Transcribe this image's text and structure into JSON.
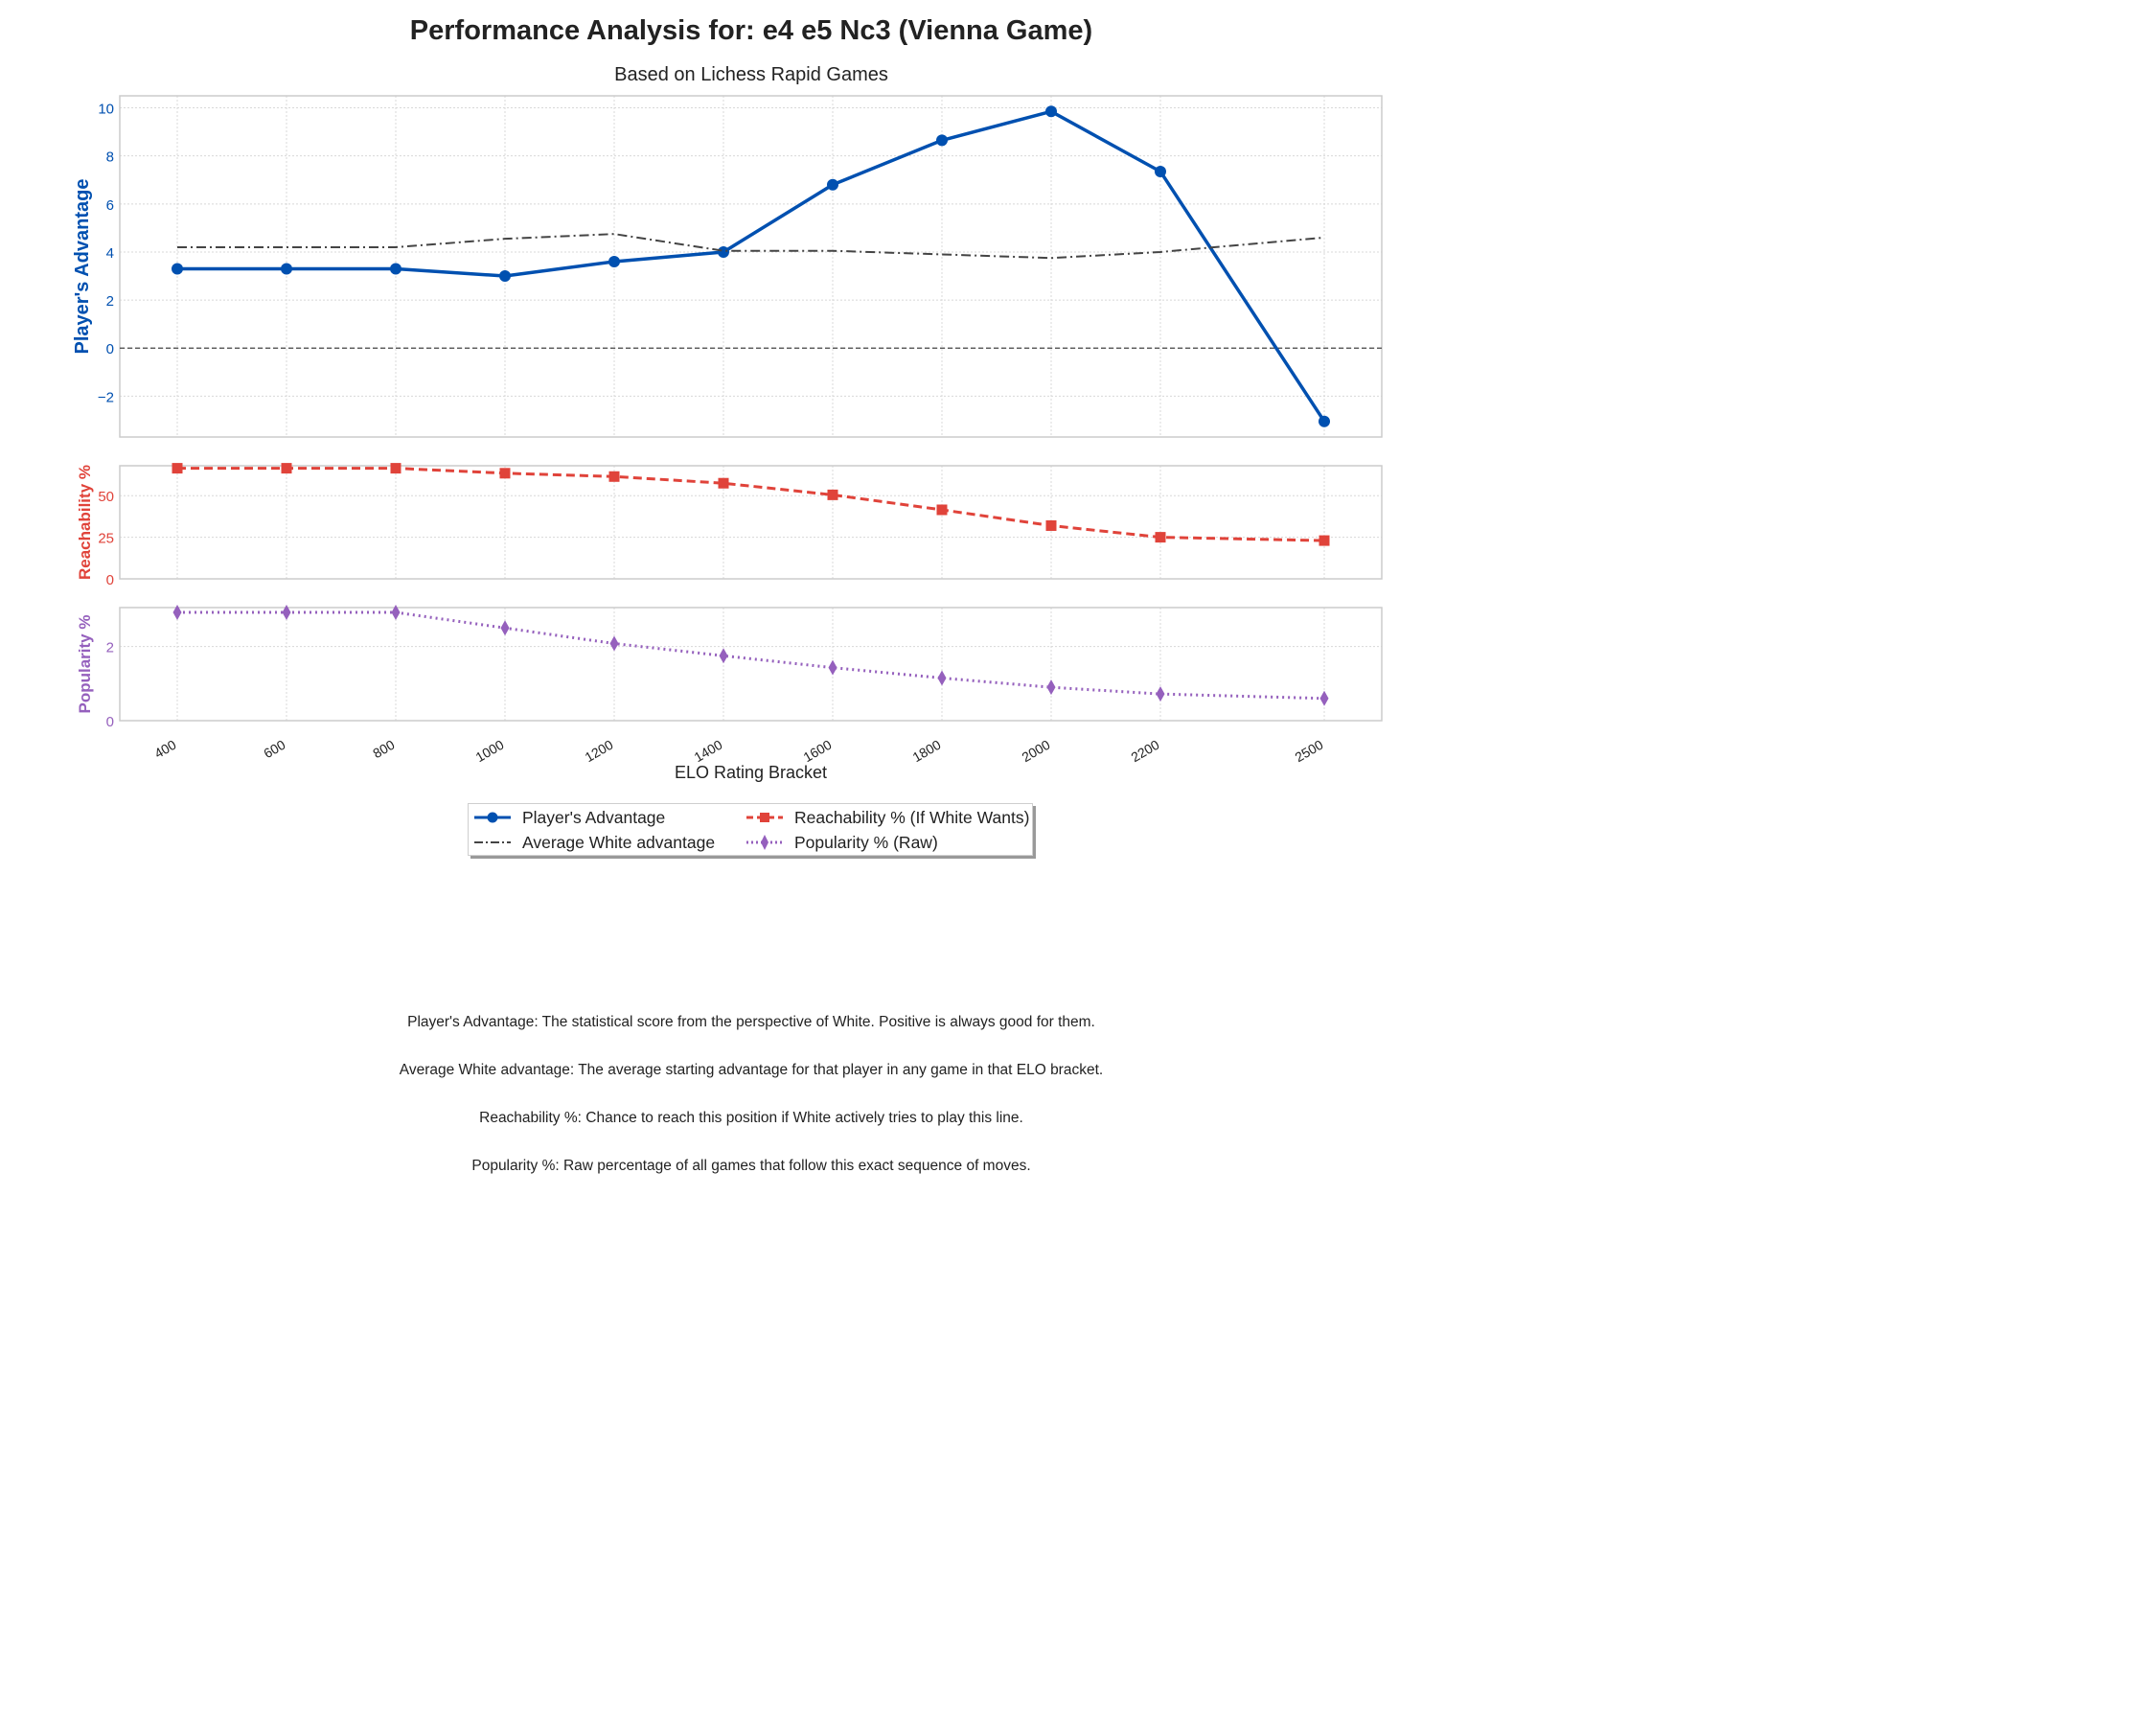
{
  "title": "Performance Analysis for: e4 e5 Nc3 (Vienna Game)",
  "subtitle": "Based on Lichess Rapid Games",
  "colors": {
    "advantage": "#0050b0",
    "average": "#444444",
    "reachability": "#e0433a",
    "popularity": "#9560bd",
    "grid": "#d8d8d8",
    "frame": "#cccccc"
  },
  "chart_data": {
    "type": "line",
    "x": [
      400,
      600,
      800,
      1000,
      1200,
      1400,
      1600,
      1800,
      2000,
      2200,
      2500
    ],
    "x_tick_labels": [
      "400",
      "600",
      "800",
      "1000",
      "1200",
      "1400",
      "1600",
      "1800",
      "2000",
      "2200",
      "2500"
    ],
    "xlabel": "ELO Rating Bracket",
    "legend_position": "bottom-center",
    "grid": true,
    "panels": [
      {
        "ylabel": "Player's Advantage",
        "ylim": [
          -3.7,
          10.5
        ],
        "yticks": [
          -2,
          0,
          2,
          4,
          6,
          8,
          10
        ],
        "ytick_labels": [
          "−2",
          "0",
          "2",
          "4",
          "6",
          "8",
          "10"
        ],
        "reference_line": 0,
        "series": [
          {
            "name": "Player's Advantage",
            "style": "solid",
            "marker": "circle",
            "values": [
              3.3,
              3.3,
              3.3,
              3.0,
              3.6,
              4.0,
              6.8,
              8.65,
              9.85,
              7.35,
              -3.05
            ]
          },
          {
            "name": "Average White advantage",
            "style": "dashdot",
            "marker": "none",
            "values": [
              4.2,
              4.2,
              4.2,
              4.55,
              4.75,
              4.05,
              4.05,
              3.9,
              3.75,
              4.0,
              4.6
            ]
          }
        ]
      },
      {
        "ylabel": "Reachability %",
        "ylim": [
          0,
          68
        ],
        "yticks": [
          0,
          25,
          50
        ],
        "ytick_labels": [
          "0",
          "25",
          "50"
        ],
        "series": [
          {
            "name": "Reachability % (If White Wants)",
            "style": "dashed",
            "marker": "square",
            "values": [
              66.5,
              66.5,
              66.5,
              63.5,
              61.5,
              57.5,
              50.5,
              41.5,
              32.0,
              25.0,
              23.0
            ]
          }
        ]
      },
      {
        "ylabel": "Popularity %",
        "ylim": [
          0,
          3.05
        ],
        "yticks": [
          0,
          2
        ],
        "ytick_labels": [
          "0",
          "2"
        ],
        "series": [
          {
            "name": "Popularity % (Raw)",
            "style": "dotted",
            "marker": "diamond",
            "values": [
              2.92,
              2.92,
              2.92,
              2.5,
              2.08,
              1.75,
              1.43,
              1.15,
              0.9,
              0.72,
              0.6
            ]
          }
        ]
      }
    ]
  },
  "legend": {
    "items": [
      {
        "label": "Player's Advantage"
      },
      {
        "label": "Reachability % (If White Wants)"
      },
      {
        "label": "Average White advantage"
      },
      {
        "label": "Popularity % (Raw)"
      }
    ]
  },
  "notes": [
    "Player's Advantage: The statistical score from the perspective of White. Positive is always good for them.",
    "Average White advantage: The average starting advantage for that player in any game in that ELO bracket.",
    "Reachability %: Chance to reach this position if White actively tries to play this line.",
    "Popularity %: Raw percentage of all games that follow this exact sequence of moves."
  ]
}
